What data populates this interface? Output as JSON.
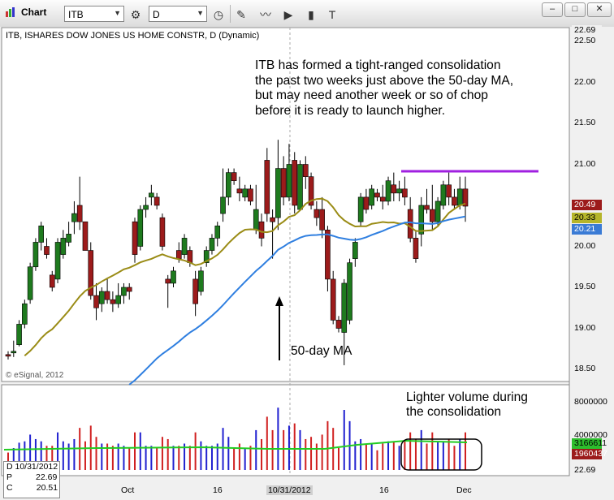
{
  "window": {
    "app_title": "Chart",
    "symbol": "ITB",
    "interval": "D",
    "controls": {
      "minimize": "–",
      "maximize": "□",
      "close": "✕"
    }
  },
  "toolbar_icons": [
    "chart-icon",
    "settings-circle-icon",
    "clock-icon",
    "pencil-icon",
    "line-draw-icon",
    "play-circle-icon",
    "chart-type-icon",
    "text-tool-icon"
  ],
  "chart": {
    "title": "ITB, ISHARES DOW JONES US HOME CONSTR, D (Dynamic)",
    "copyright": "© eSignal, 2012",
    "price_axis": [
      "22.50",
      "22.00",
      "21.50",
      "21.00",
      "20.50",
      "20.00",
      "19.50",
      "19.00",
      "18.50"
    ],
    "top_tag": "22.69",
    "tags": [
      {
        "value": "20.49",
        "bg": "#9c1b1b",
        "fg": "#ffffff"
      },
      {
        "value": "20.33",
        "bg": "#b5b52a",
        "fg": "#000000"
      },
      {
        "value": "20.21",
        "bg": "#3a7bd5",
        "fg": "#ffffff"
      }
    ],
    "volume_axis": [
      "8000000",
      "4000000"
    ],
    "volume_tags": [
      {
        "value": "3166611",
        "bg": "#2dbd2d",
        "fg": "#000000"
      },
      {
        "value": "1960437",
        "bg": "#9c1b1b",
        "fg": "#ffffff"
      }
    ],
    "volume_bottom_tag": "22.69",
    "x_labels": [
      "Oct",
      "16",
      "10/31/2012",
      "16",
      "Dec"
    ],
    "annotations": {
      "main": "ITB has formed a tight-ranged consolidation\nthe past two weeks just above the 50-day MA,\nbut may need another week or so of chop\nbefore it is ready to launch higher.",
      "ma_label": "50-day MA",
      "volume_note": "Lighter volume during\nthe consolidation"
    },
    "data_window": {
      "date": "D 10/31/2012",
      "p_label": "P",
      "p_value": "22.69",
      "c_label": "C",
      "c_value": "20.51"
    },
    "colors": {
      "up": "#1e7a1e",
      "down": "#9c1b1b",
      "ma20": "#9a8c16",
      "ma50": "#2f7fe0",
      "resistance": "#a020e0",
      "vol_ma": "#22cc22",
      "vol_blue": "#2020d0",
      "vol_red": "#d02020"
    }
  },
  "chart_data": {
    "type": "candlestick",
    "ylim": [
      18.4,
      22.7
    ],
    "resistance": 20.92,
    "candles": [
      [
        18.68,
        18.72,
        18.62,
        18.66
      ],
      [
        18.7,
        18.85,
        18.65,
        18.72
      ],
      [
        18.8,
        19.1,
        18.78,
        19.05
      ],
      [
        19.05,
        19.35,
        19.0,
        19.3
      ],
      [
        19.35,
        19.8,
        19.3,
        19.75
      ],
      [
        19.75,
        20.1,
        19.7,
        20.05
      ],
      [
        20.05,
        20.3,
        19.95,
        20.25
      ],
      [
        20.0,
        20.1,
        19.85,
        19.9
      ],
      [
        19.65,
        19.7,
        19.45,
        19.5
      ],
      [
        19.6,
        20.1,
        19.55,
        20.05
      ],
      [
        19.9,
        20.2,
        19.85,
        20.1
      ],
      [
        20.05,
        20.3,
        20.0,
        20.15
      ],
      [
        20.3,
        20.55,
        20.15,
        20.4
      ],
      [
        20.5,
        20.85,
        20.2,
        20.3
      ],
      [
        20.3,
        20.3,
        19.95,
        19.95
      ],
      [
        19.95,
        20.05,
        19.35,
        19.4
      ],
      [
        19.4,
        19.55,
        19.1,
        19.25
      ],
      [
        19.3,
        19.5,
        19.2,
        19.45
      ],
      [
        19.45,
        19.6,
        19.3,
        19.35
      ],
      [
        19.35,
        19.45,
        19.2,
        19.3
      ],
      [
        19.3,
        19.55,
        19.25,
        19.4
      ],
      [
        19.4,
        19.55,
        19.3,
        19.5
      ],
      [
        19.5,
        19.55,
        19.35,
        19.45
      ],
      [
        20.3,
        20.35,
        19.8,
        19.9
      ],
      [
        20.0,
        20.5,
        19.95,
        20.45
      ],
      [
        20.45,
        20.6,
        20.35,
        20.5
      ],
      [
        20.6,
        20.75,
        20.5,
        20.65
      ],
      [
        20.6,
        20.65,
        20.45,
        20.5
      ],
      [
        20.35,
        20.4,
        19.95,
        20.0
      ],
      [
        19.6,
        19.65,
        19.25,
        19.55
      ],
      [
        19.55,
        19.75,
        19.5,
        19.7
      ],
      [
        19.95,
        20.05,
        19.8,
        19.85
      ],
      [
        19.9,
        20.15,
        19.85,
        20.1
      ],
      [
        19.95,
        20.0,
        19.75,
        19.8
      ],
      [
        19.6,
        19.7,
        19.15,
        19.3
      ],
      [
        19.45,
        19.75,
        19.4,
        19.7
      ],
      [
        19.8,
        20.0,
        19.75,
        19.95
      ],
      [
        19.95,
        20.15,
        19.9,
        20.1
      ],
      [
        20.1,
        20.3,
        20.0,
        20.25
      ],
      [
        20.4,
        20.95,
        20.3,
        20.6
      ],
      [
        20.6,
        20.95,
        20.5,
        20.9
      ],
      [
        20.9,
        20.95,
        20.75,
        20.8
      ],
      [
        20.7,
        20.85,
        20.55,
        20.65
      ],
      [
        20.6,
        20.75,
        20.55,
        20.7
      ],
      [
        20.7,
        20.75,
        20.5,
        20.55
      ],
      [
        20.2,
        20.75,
        20.15,
        20.45
      ],
      [
        20.3,
        20.4,
        20.0,
        20.1
      ],
      [
        21.05,
        21.2,
        20.3,
        20.4
      ],
      [
        20.35,
        20.45,
        19.85,
        20.3
      ],
      [
        20.35,
        21.3,
        20.2,
        20.95
      ],
      [
        20.95,
        21.1,
        20.5,
        20.6
      ],
      [
        20.6,
        21.25,
        20.55,
        21.0
      ],
      [
        21.05,
        21.15,
        20.4,
        20.5
      ],
      [
        20.45,
        21.05,
        20.45,
        21.0
      ],
      [
        21.0,
        21.1,
        20.7,
        20.85
      ],
      [
        20.85,
        20.9,
        20.45,
        20.5
      ],
      [
        20.45,
        20.55,
        20.25,
        20.35
      ],
      [
        20.45,
        20.6,
        20.1,
        20.2
      ],
      [
        20.2,
        20.25,
        19.45,
        19.6
      ],
      [
        19.6,
        19.7,
        19.05,
        19.1
      ],
      [
        19.1,
        19.15,
        18.95,
        19.0
      ],
      [
        18.95,
        19.6,
        18.55,
        19.55
      ],
      [
        19.1,
        19.85,
        19.05,
        19.8
      ],
      [
        19.85,
        20.1,
        19.75,
        20.05
      ],
      [
        20.3,
        20.65,
        20.25,
        20.6
      ],
      [
        20.6,
        20.7,
        20.4,
        20.45
      ],
      [
        20.5,
        20.75,
        20.45,
        20.7
      ],
      [
        20.65,
        20.7,
        20.55,
        20.6
      ],
      [
        20.6,
        20.75,
        20.45,
        20.55
      ],
      [
        20.55,
        20.85,
        20.5,
        20.8
      ],
      [
        20.75,
        20.9,
        20.55,
        20.65
      ],
      [
        20.65,
        20.8,
        20.55,
        20.7
      ],
      [
        20.7,
        20.85,
        20.5,
        20.6
      ],
      [
        20.45,
        20.6,
        20.05,
        20.1
      ],
      [
        20.1,
        20.2,
        19.8,
        19.85
      ],
      [
        20.15,
        20.6,
        20.0,
        20.5
      ],
      [
        20.5,
        20.7,
        20.4,
        20.45
      ],
      [
        20.45,
        20.75,
        20.2,
        20.3
      ],
      [
        20.3,
        20.6,
        20.25,
        20.55
      ],
      [
        20.5,
        20.8,
        20.45,
        20.75
      ],
      [
        20.75,
        20.9,
        20.5,
        20.6
      ],
      [
        20.6,
        20.7,
        20.45,
        20.5
      ],
      [
        20.5,
        20.85,
        20.45,
        20.7
      ],
      [
        20.7,
        20.85,
        20.3,
        20.49
      ]
    ]
  }
}
